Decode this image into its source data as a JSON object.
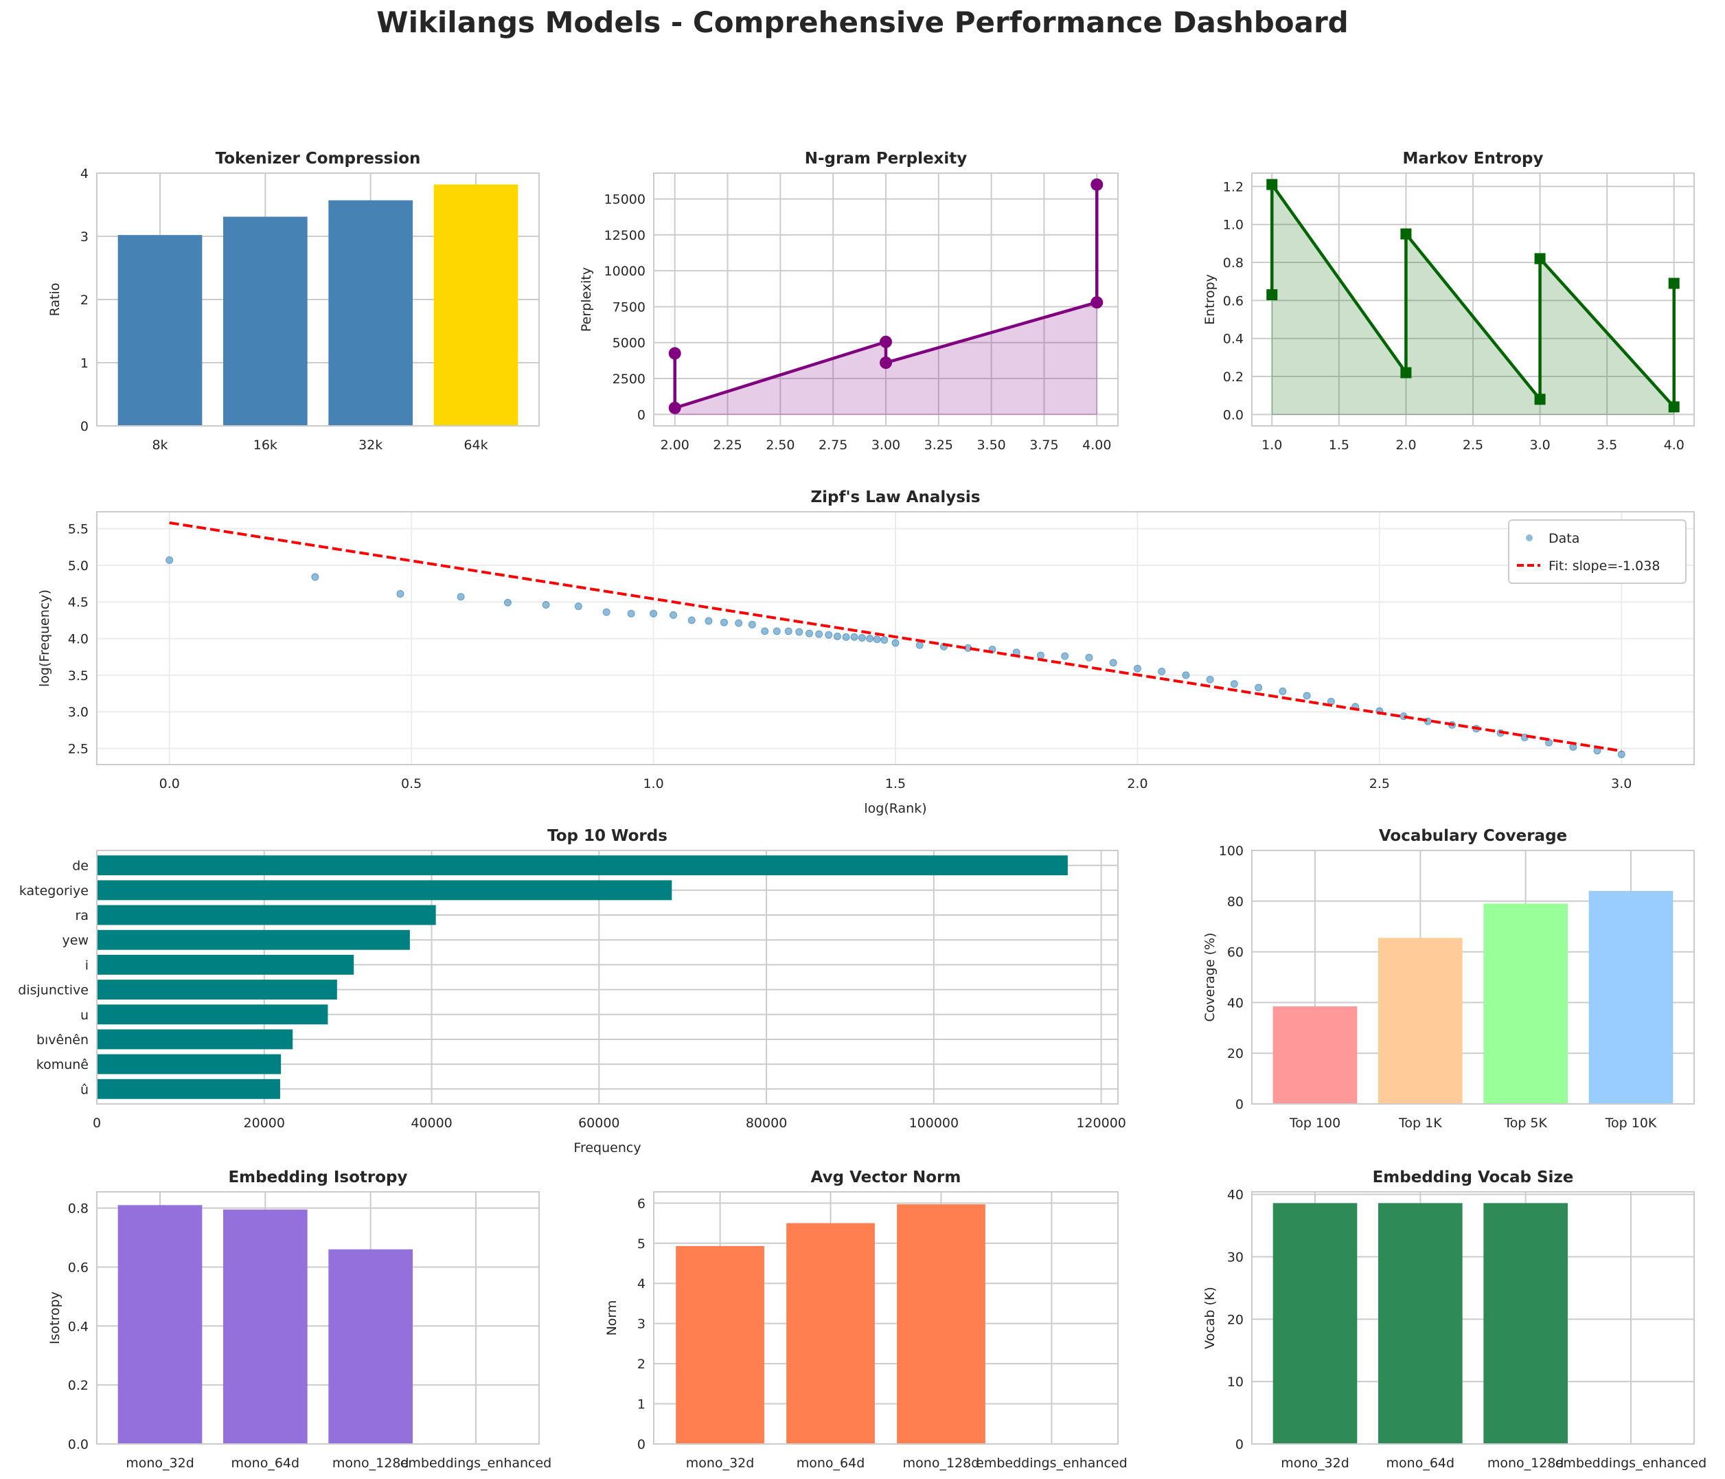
{
  "title": "Wikilangs Models - Comprehensive Performance Dashboard",
  "chart_data": [
    {
      "id": "tokenizer",
      "type": "bar",
      "title": "Tokenizer Compression",
      "xlabel": "",
      "ylabel": "Ratio",
      "categories": [
        "8k",
        "16k",
        "32k",
        "64k"
      ],
      "values": [
        3.02,
        3.31,
        3.57,
        3.82
      ],
      "colors": [
        "#4682b4",
        "#4682b4",
        "#4682b4",
        "#ffd700"
      ],
      "ylim": [
        0,
        4
      ],
      "yticks": [
        0,
        1,
        2,
        3,
        4
      ],
      "ytick_labels": [
        "0",
        "1",
        "2",
        "3",
        "4"
      ],
      "grid": true
    },
    {
      "id": "perplexity",
      "type": "line",
      "title": "N-gram Perplexity",
      "xlabel": "",
      "ylabel": "Perplexity",
      "x": [
        2,
        2,
        3,
        3,
        4,
        4
      ],
      "y": [
        4250,
        450,
        5050,
        3600,
        7800,
        16000
      ],
      "color": "#800080",
      "fill": true,
      "marker": "circle",
      "xlim": [
        1.9,
        4.1
      ],
      "ylim": [
        -800,
        16800
      ],
      "xticks": [
        2,
        2.25,
        2.5,
        2.75,
        3,
        3.25,
        3.5,
        3.75,
        4
      ],
      "xtick_labels": [
        "2.00",
        "2.25",
        "2.50",
        "2.75",
        "3.00",
        "3.25",
        "3.50",
        "3.75",
        "4.00"
      ],
      "yticks": [
        0,
        2500,
        5000,
        7500,
        10000,
        12500,
        15000
      ],
      "ytick_labels": [
        "0",
        "2500",
        "5000",
        "7500",
        "10000",
        "12500",
        "15000"
      ],
      "grid": true
    },
    {
      "id": "markov",
      "type": "line",
      "title": "Markov Entropy",
      "xlabel": "",
      "ylabel": "Entropy",
      "x": [
        1,
        1,
        2,
        2,
        3,
        3,
        4,
        4
      ],
      "y": [
        0.63,
        1.21,
        0.22,
        0.95,
        0.08,
        0.82,
        0.04,
        0.69
      ],
      "color": "#006400",
      "fill": true,
      "marker": "square",
      "xlim": [
        0.85,
        4.15
      ],
      "ylim": [
        -0.06,
        1.27
      ],
      "xticks": [
        1,
        1.5,
        2,
        2.5,
        3,
        3.5,
        4
      ],
      "xtick_labels": [
        "1.0",
        "1.5",
        "2.0",
        "2.5",
        "3.0",
        "3.5",
        "4.0"
      ],
      "yticks": [
        0,
        0.2,
        0.4,
        0.6,
        0.8,
        1.0,
        1.2
      ],
      "ytick_labels": [
        "0.0",
        "0.2",
        "0.4",
        "0.6",
        "0.8",
        "1.0",
        "1.2"
      ],
      "grid": true
    },
    {
      "id": "zipf",
      "type": "scatter",
      "title": "Zipf's Law Analysis",
      "xlabel": "log(Rank)",
      "ylabel": "log(Frequency)",
      "series": [
        {
          "name": "Data",
          "color": "#1f77b4",
          "x": [
            0,
            0.301,
            0.477,
            0.602,
            0.699,
            0.778,
            0.845,
            0.903,
            0.954,
            1.0,
            1.041,
            1.079,
            1.114,
            1.146,
            1.176,
            1.204,
            1.23,
            1.255,
            1.279,
            1.301,
            1.322,
            1.342,
            1.362,
            1.38,
            1.398,
            1.415,
            1.431,
            1.447,
            1.462,
            1.477,
            1.5,
            1.55,
            1.6,
            1.65,
            1.7,
            1.75,
            1.8,
            1.85,
            1.9,
            1.95,
            2.0,
            2.05,
            2.1,
            2.15,
            2.2,
            2.25,
            2.3,
            2.35,
            2.4,
            2.45,
            2.5,
            2.55,
            2.6,
            2.65,
            2.7,
            2.75,
            2.8,
            2.85,
            2.9,
            2.95,
            3.0
          ],
          "y": [
            5.07,
            4.84,
            4.61,
            4.57,
            4.49,
            4.46,
            4.44,
            4.36,
            4.34,
            4.34,
            4.32,
            4.25,
            4.24,
            4.22,
            4.21,
            4.19,
            4.1,
            4.1,
            4.1,
            4.09,
            4.07,
            4.06,
            4.05,
            4.03,
            4.02,
            4.02,
            4.01,
            4.0,
            3.99,
            3.98,
            3.94,
            3.91,
            3.89,
            3.87,
            3.85,
            3.81,
            3.77,
            3.76,
            3.74,
            3.67,
            3.59,
            3.55,
            3.5,
            3.44,
            3.38,
            3.33,
            3.28,
            3.22,
            3.14,
            3.07,
            3.01,
            2.94,
            2.87,
            2.82,
            2.77,
            2.71,
            2.65,
            2.58,
            2.52,
            2.47,
            2.42
          ]
        },
        {
          "name": "Fit: slope=-1.038",
          "color": "#ff0000",
          "style": "dashed",
          "x": [
            0,
            3
          ],
          "y": [
            5.58,
            2.466
          ]
        }
      ],
      "legend": "top-right",
      "xlim": [
        -0.15,
        3.15
      ],
      "ylim": [
        2.28,
        5.73
      ],
      "xticks": [
        0,
        0.5,
        1,
        1.5,
        2,
        2.5,
        3
      ],
      "xtick_labels": [
        "0.0",
        "0.5",
        "1.0",
        "1.5",
        "2.0",
        "2.5",
        "3.0"
      ],
      "yticks": [
        2.5,
        3,
        3.5,
        4,
        4.5,
        5,
        5.5
      ],
      "ytick_labels": [
        "2.5",
        "3.0",
        "3.5",
        "4.0",
        "4.5",
        "5.0",
        "5.5"
      ],
      "grid": true
    },
    {
      "id": "topwords",
      "type": "barh",
      "title": "Top 10 Words",
      "xlabel": "Frequency",
      "ylabel": "",
      "categories": [
        "de",
        "kategoriye",
        "ra",
        "yew",
        "i",
        "disjunctive",
        "u",
        "bıvênên",
        "komunê",
        "û"
      ],
      "values": [
        116000,
        68700,
        40500,
        37400,
        30700,
        28700,
        27600,
        23400,
        22000,
        21900
      ],
      "color": "#008080",
      "xlim": [
        0,
        122000
      ],
      "xticks": [
        0,
        20000,
        40000,
        60000,
        80000,
        100000,
        120000
      ],
      "xtick_labels": [
        "0",
        "20000",
        "40000",
        "60000",
        "80000",
        "100000",
        "120000"
      ],
      "grid": true
    },
    {
      "id": "coverage",
      "type": "bar",
      "title": "Vocabulary Coverage",
      "xlabel": "",
      "ylabel": "Coverage (%)",
      "categories": [
        "Top 100",
        "Top 1K",
        "Top 5K",
        "Top 10K"
      ],
      "values": [
        38.5,
        65.5,
        79,
        84
      ],
      "colors": [
        "#ff9999",
        "#ffcc99",
        "#99ff99",
        "#99ccff"
      ],
      "ylim": [
        0,
        100
      ],
      "yticks": [
        0,
        20,
        40,
        60,
        80,
        100
      ],
      "ytick_labels": [
        "0",
        "20",
        "40",
        "60",
        "80",
        "100"
      ],
      "grid": true
    },
    {
      "id": "isotropy",
      "type": "bar",
      "title": "Embedding Isotropy",
      "xlabel": "",
      "ylabel": "Isotropy",
      "categories": [
        "mono_32d",
        "mono_64d",
        "mono_128d",
        "embeddings_enhanced"
      ],
      "values": [
        0.81,
        0.795,
        0.66,
        null
      ],
      "colors": [
        "#9370db",
        "#9370db",
        "#9370db",
        "#9370db"
      ],
      "ylim": [
        0,
        0.855
      ],
      "yticks": [
        0,
        0.2,
        0.4,
        0.6,
        0.8
      ],
      "ytick_labels": [
        "0.0",
        "0.2",
        "0.4",
        "0.6",
        "0.8"
      ],
      "grid": true
    },
    {
      "id": "norm",
      "type": "bar",
      "title": "Avg Vector Norm",
      "xlabel": "",
      "ylabel": "Norm",
      "categories": [
        "mono_32d",
        "mono_64d",
        "mono_128d",
        "embeddings_enhanced"
      ],
      "values": [
        4.93,
        5.5,
        5.97,
        null
      ],
      "colors": [
        "#ff7f50",
        "#ff7f50",
        "#ff7f50",
        "#ff7f50"
      ],
      "ylim": [
        0,
        6.28
      ],
      "yticks": [
        0,
        1,
        2,
        3,
        4,
        5,
        6
      ],
      "ytick_labels": [
        "0",
        "1",
        "2",
        "3",
        "4",
        "5",
        "6"
      ],
      "grid": true
    },
    {
      "id": "vocabsize",
      "type": "bar",
      "title": "Embedding Vocab Size",
      "xlabel": "",
      "ylabel": "Vocab (K)",
      "categories": [
        "mono_32d",
        "mono_64d",
        "mono_128d",
        "embeddings_enhanced"
      ],
      "values": [
        38.6,
        38.6,
        38.6,
        null
      ],
      "colors": [
        "#2e8b57",
        "#2e8b57",
        "#2e8b57",
        "#2e8b57"
      ],
      "ylim": [
        0,
        40.4
      ],
      "yticks": [
        0,
        10,
        20,
        30,
        40
      ],
      "ytick_labels": [
        "0",
        "10",
        "20",
        "30",
        "40"
      ],
      "grid": true
    }
  ]
}
